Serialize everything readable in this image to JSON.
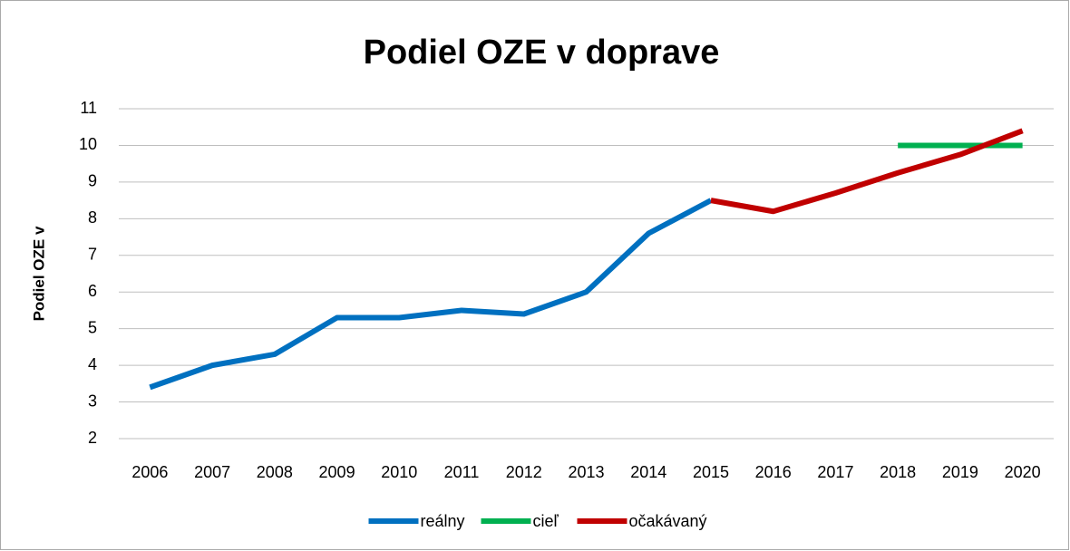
{
  "chart_data": {
    "type": "line",
    "title": "Podiel OZE v doprave",
    "ylabel": "Podiel OZE v",
    "categories": [
      "2006",
      "2007",
      "2008",
      "2009",
      "2010",
      "2011",
      "2012",
      "2013",
      "2014",
      "2015",
      "2016",
      "2017",
      "2018",
      "2019",
      "2020"
    ],
    "series": [
      {
        "name": "reálny",
        "color": "#0070c0",
        "values": [
          3.4,
          4.0,
          4.3,
          5.3,
          5.3,
          5.5,
          5.4,
          6.0,
          7.6,
          8.5,
          null,
          null,
          null,
          null,
          null
        ]
      },
      {
        "name": "cieľ",
        "color": "#00b050",
        "values": [
          null,
          null,
          null,
          null,
          null,
          null,
          null,
          null,
          null,
          null,
          null,
          null,
          10,
          10,
          10
        ]
      },
      {
        "name": "očakávaný",
        "color": "#c00000",
        "values": [
          null,
          null,
          null,
          null,
          null,
          null,
          null,
          null,
          null,
          8.5,
          8.2,
          8.7,
          9.25,
          9.75,
          10.4
        ]
      }
    ],
    "ylim": [
      2,
      11
    ],
    "yticks": [
      2,
      3,
      4,
      5,
      6,
      7,
      8,
      9,
      10,
      11
    ],
    "grid": true,
    "legend": "bottom"
  }
}
